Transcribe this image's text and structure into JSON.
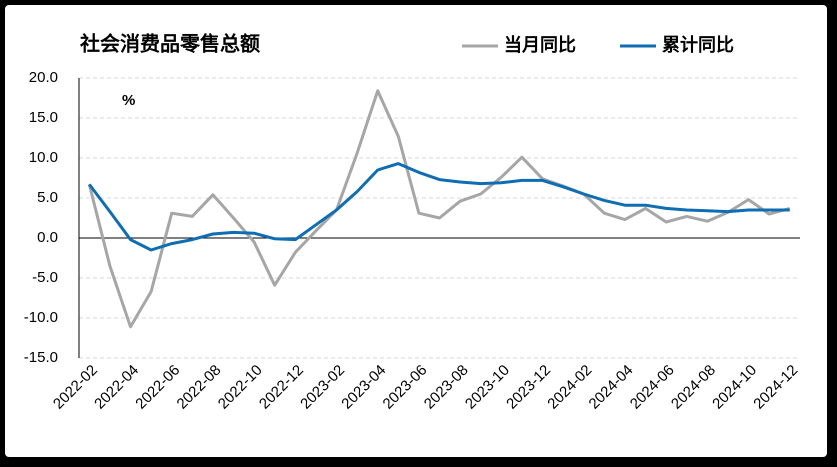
{
  "chart_data": {
    "type": "line",
    "title": "社会消费品零售总额",
    "annotation": "%",
    "categories": [
      "2022-02",
      null,
      "2022-04",
      null,
      "2022-06",
      null,
      "2022-08",
      null,
      "2022-10",
      null,
      "2022-12",
      null,
      "2023-02",
      null,
      "2023-04",
      null,
      "2023-06",
      null,
      "2023-08",
      null,
      "2023-10",
      null,
      "2023-12",
      null,
      "2024-02",
      null,
      "2024-04",
      null,
      "2024-06",
      null,
      "2024-08",
      null,
      "2024-10",
      null,
      "2024-12"
    ],
    "series": [
      {
        "name": "当月同比",
        "color": "#a6a6a6",
        "values": [
          6.7,
          -3.5,
          -11.1,
          -6.7,
          3.1,
          2.7,
          5.4,
          2.5,
          -0.5,
          -5.9,
          -1.8,
          0.9,
          3.5,
          10.6,
          18.4,
          12.7,
          3.1,
          2.5,
          4.6,
          5.5,
          7.6,
          10.1,
          7.4,
          6.5,
          5.5,
          3.1,
          2.3,
          3.7,
          2.0,
          2.7,
          2.1,
          3.2,
          4.8,
          3.0,
          3.7
        ]
      },
      {
        "name": "累计同比",
        "color": "#0f6db3",
        "values": [
          6.7,
          3.3,
          -0.2,
          -1.5,
          -0.7,
          -0.2,
          0.5,
          0.7,
          0.6,
          -0.1,
          -0.2,
          1.65,
          3.5,
          5.8,
          8.5,
          9.3,
          8.2,
          7.3,
          7.0,
          6.8,
          6.9,
          7.2,
          7.2,
          6.4,
          5.5,
          4.7,
          4.1,
          4.1,
          3.7,
          3.5,
          3.4,
          3.3,
          3.5,
          3.5,
          3.5
        ]
      }
    ],
    "ylim": [
      -15,
      20
    ],
    "yticks": [
      {
        "value": -15,
        "label": "-15.0"
      },
      {
        "value": -10,
        "label": "-10.0"
      },
      {
        "value": -5,
        "label": "-5.0"
      },
      {
        "value": 0,
        "label": "0.0"
      },
      {
        "value": 5,
        "label": "5.0"
      },
      {
        "value": 10,
        "label": "10.0"
      },
      {
        "value": 15,
        "label": "15.0"
      },
      {
        "value": 20,
        "label": "20.0"
      }
    ],
    "grid": true,
    "legend": "top"
  }
}
